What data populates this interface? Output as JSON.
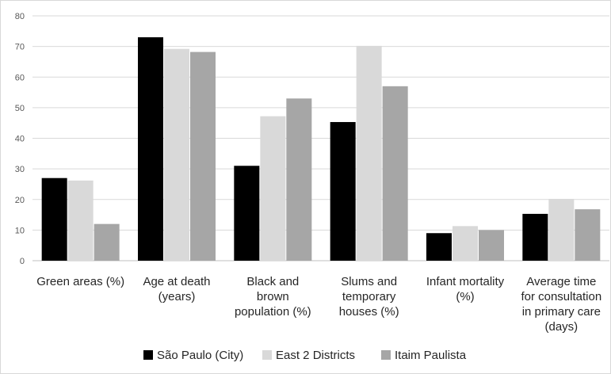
{
  "chart_data": {
    "type": "bar",
    "title": "",
    "xlabel": "",
    "ylabel": "",
    "ylim": [
      0,
      80
    ],
    "yticks": [
      0,
      10,
      20,
      30,
      40,
      50,
      60,
      70,
      80
    ],
    "grid": true,
    "legend_position": "bottom",
    "categories": [
      [
        "Green areas (%)"
      ],
      [
        "Age at death",
        "(years)"
      ],
      [
        "Black and",
        "brown",
        "population (%)"
      ],
      [
        "Slums and",
        "temporary",
        "houses (%)"
      ],
      [
        "Infant mortality",
        "(%)"
      ],
      [
        "Average time",
        "for consultation",
        "in primary care",
        "(days)"
      ]
    ],
    "series": [
      {
        "name": "São Paulo (City)",
        "color": "#000000",
        "values": [
          27,
          73,
          31,
          45.3,
          9,
          15.3
        ]
      },
      {
        "name": "East 2 Districts",
        "color": "#d9d9d9",
        "values": [
          26.2,
          69.2,
          47.2,
          70.2,
          11.3,
          20.2
        ]
      },
      {
        "name": "Itaim Paulista",
        "color": "#a6a6a6",
        "values": [
          12,
          68.2,
          53,
          57,
          10,
          16.8
        ]
      }
    ]
  }
}
